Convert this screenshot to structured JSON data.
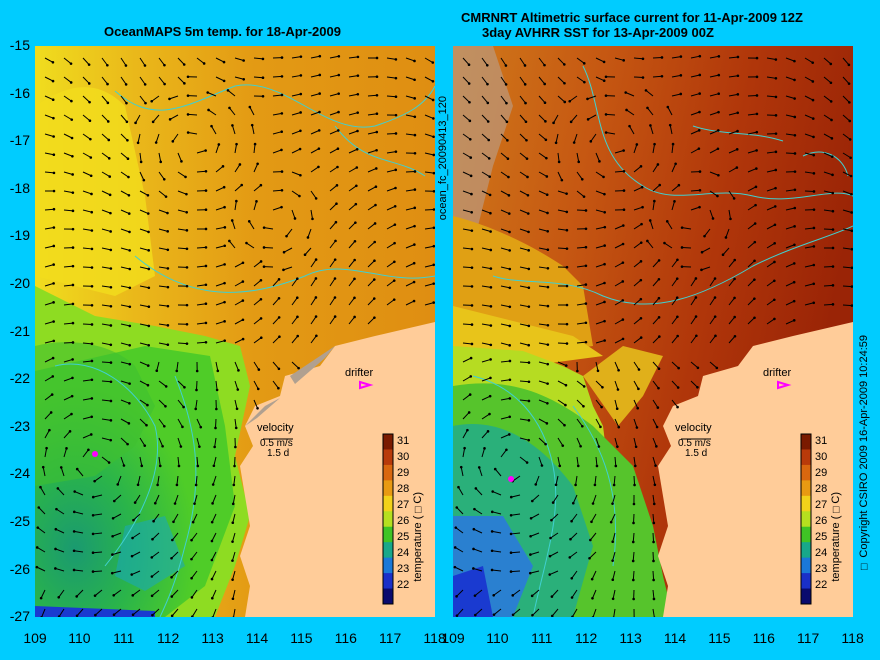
{
  "left_panel": {
    "title": "OceanMAPS 5m temp. for 18-Apr-2009",
    "side_label": "ocean_fc_20090413_120",
    "drifter_label": "drifter",
    "velocity_label": "velocity",
    "velocity_scale": "0.5 m/s",
    "velocity_time": "1.5 d",
    "colorbar_label": "temperature (□C)"
  },
  "right_panel": {
    "title_line1": "CMRNRT Altimetric surface current for 11-Apr-2009 12Z",
    "title_line2": "3day AVHRR SST for 13-Apr-2009 00Z",
    "side_label": "□ Copyright CSIRO 2009   16-Apr-2009 10:24:59",
    "drifter_label": "drifter",
    "velocity_label": "velocity",
    "velocity_scale": "0.5 m/s",
    "velocity_time": "1.5 d",
    "colorbar_label": "temperature (□C)"
  },
  "axes": {
    "lat_ticks": [
      "-15",
      "-16",
      "-17",
      "-18",
      "-19",
      "-20",
      "-21",
      "-22",
      "-23",
      "-24",
      "-25",
      "-26",
      "-27"
    ],
    "lon_ticks_left": [
      "109",
      "110",
      "111",
      "112",
      "113",
      "114",
      "115",
      "116",
      "117",
      "118"
    ],
    "lon_ticks_right": [
      "109",
      "110",
      "111",
      "112",
      "113",
      "114",
      "115",
      "116",
      "117",
      "118"
    ]
  },
  "colorbar": {
    "ticks": [
      "31",
      "30",
      "29",
      "28",
      "27",
      "26",
      "25",
      "24",
      "23",
      "22"
    ],
    "colors": [
      "#7a1a00",
      "#b83a0a",
      "#d9670f",
      "#e89a12",
      "#f2d21a",
      "#b6e01f",
      "#3fc425",
      "#18a88a",
      "#1a78d8",
      "#1a2fc8",
      "#0a0a6e"
    ]
  },
  "colors": {
    "background": "#00ccff",
    "land": "#ffcc99",
    "coast_shelf": "#b0a090",
    "contour": "#40d0d0",
    "arrow": "#000000",
    "drifter": "#ff00ff"
  }
}
